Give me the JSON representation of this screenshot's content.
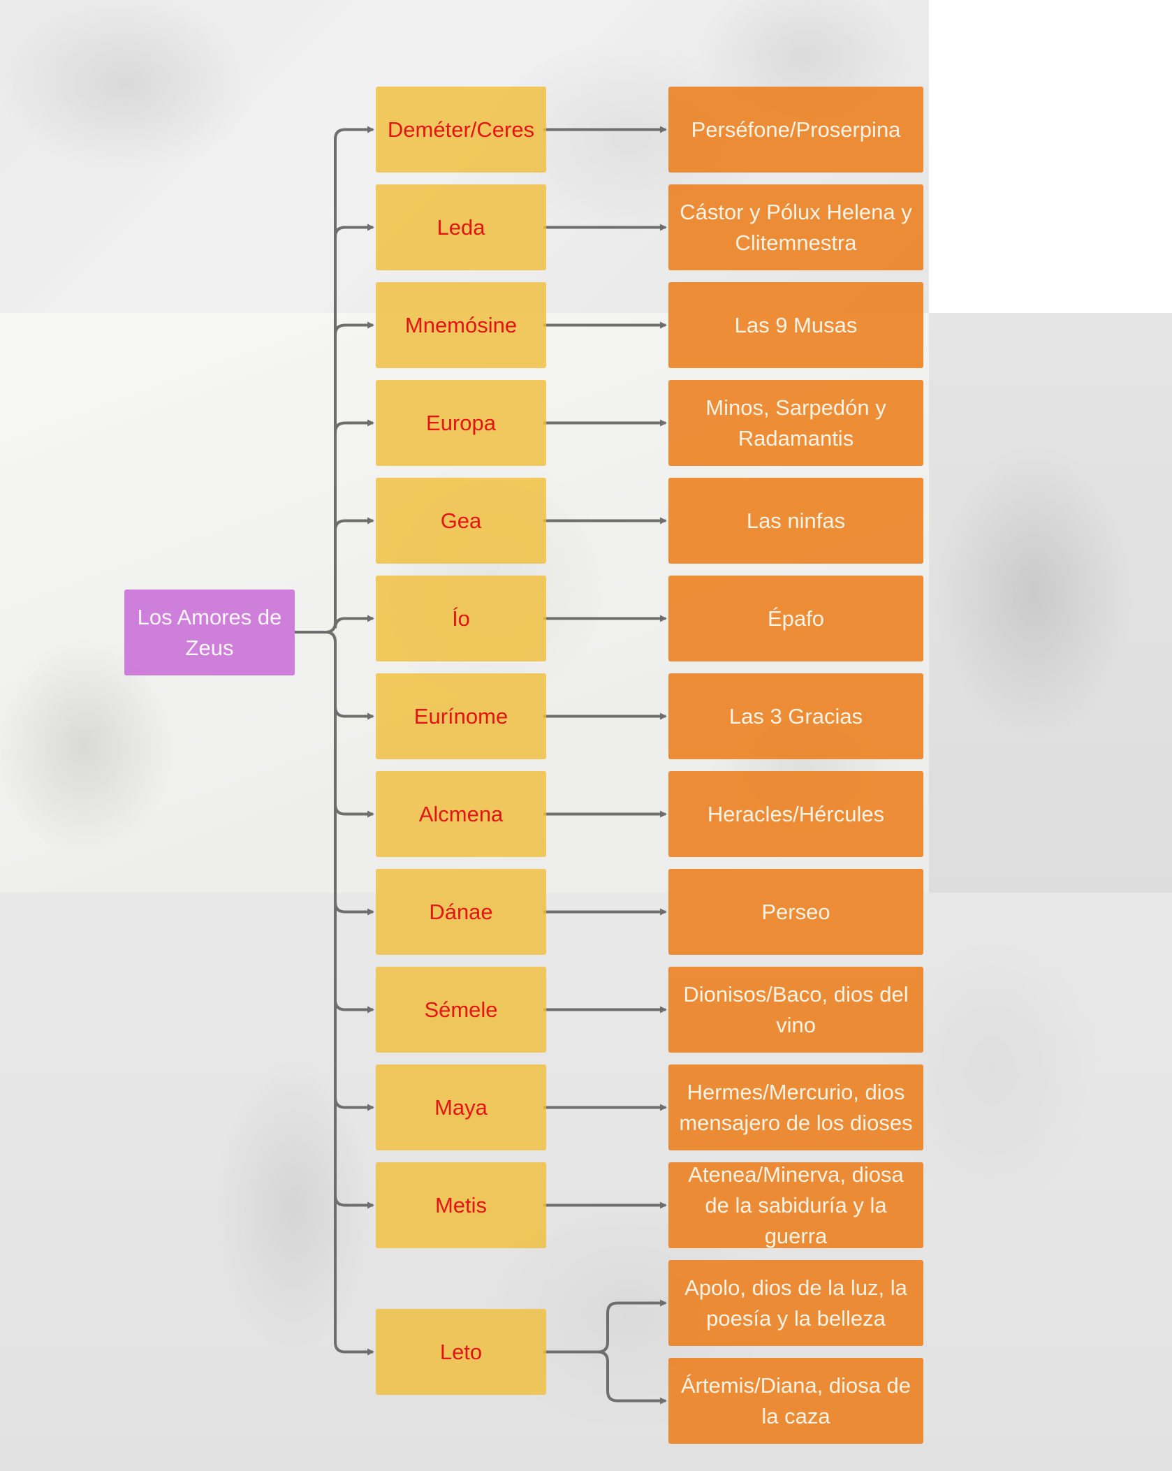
{
  "root": {
    "label": "Los Amores de Zeus"
  },
  "colors": {
    "root": "#c86ed7",
    "mother": "#f0be3c",
    "mother_text": "#e21414",
    "child": "#ec7e1c",
    "connector": "#6e6e6e"
  },
  "relations": [
    {
      "mother": "Deméter/Ceres",
      "children": [
        "Perséfone/Proserpina"
      ]
    },
    {
      "mother": "Leda",
      "children": [
        "Cástor y Pólux Helena y Clitemnestra"
      ]
    },
    {
      "mother": "Mnemósine",
      "children": [
        "Las 9 Musas"
      ]
    },
    {
      "mother": "Europa",
      "children": [
        "Minos, Sarpedón y Radamantis"
      ]
    },
    {
      "mother": "Gea",
      "children": [
        "Las ninfas"
      ]
    },
    {
      "mother": "Ío",
      "children": [
        "Épafo"
      ]
    },
    {
      "mother": "Eurínome",
      "children": [
        "Las 3 Gracias"
      ]
    },
    {
      "mother": "Alcmena",
      "children": [
        "Heracles/Hércules"
      ]
    },
    {
      "mother": "Dánae",
      "children": [
        "Perseo"
      ]
    },
    {
      "mother": "Sémele",
      "children": [
        "Dionisos/Baco, dios del vino"
      ]
    },
    {
      "mother": "Maya",
      "children": [
        "Hermes/Mercurio, dios mensajero de los dioses"
      ]
    },
    {
      "mother": "Metis",
      "children": [
        "Atenea/Minerva, diosa de la sabiduría y la guerra"
      ]
    },
    {
      "mother": "Leto",
      "children": [
        "Apolo, dios de la luz, la poesía y la belleza",
        "Ártemis/Diana, diosa de la caza"
      ]
    }
  ]
}
